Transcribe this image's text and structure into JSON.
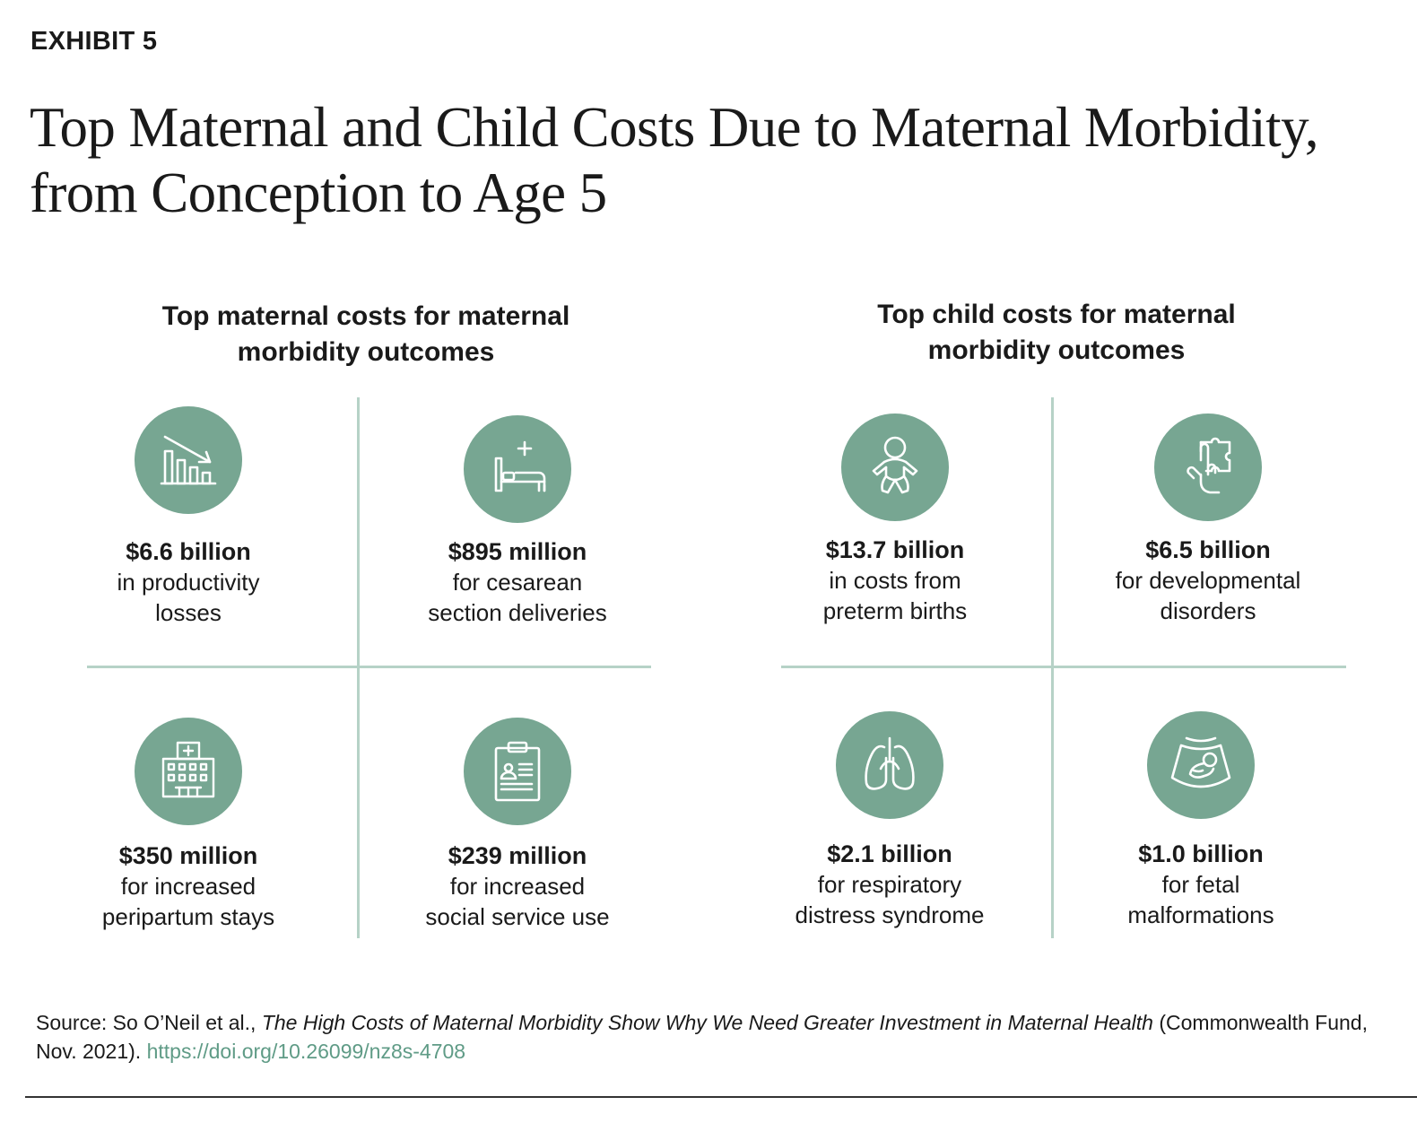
{
  "exhibit_label": "EXHIBIT 5",
  "title_line1": "Top Maternal and Child Costs Due to Maternal Morbidity,",
  "title_line2": "from Conception to Age 5",
  "colors": {
    "icon_fill": "#77a692",
    "divider": "#b6d2c7",
    "link": "#5f9b86"
  },
  "maternal": {
    "heading_line1": "Top maternal costs for maternal",
    "heading_line2": "morbidity outcomes",
    "items": [
      {
        "icon": "declining-bar-chart-icon",
        "amount": "$6.6 billion",
        "line1": "in productivity",
        "line2": "losses"
      },
      {
        "icon": "hospital-bed-icon",
        "amount": "$895 million",
        "line1": "for cesarean",
        "line2": "section deliveries"
      },
      {
        "icon": "hospital-building-icon",
        "amount": "$350 million",
        "line1": "for increased",
        "line2": "peripartum stays"
      },
      {
        "icon": "clipboard-record-icon",
        "amount": "$239 million",
        "line1": "for increased",
        "line2": "social service use"
      }
    ]
  },
  "child": {
    "heading_line1": "Top child costs for maternal",
    "heading_line2": "morbidity outcomes",
    "items": [
      {
        "icon": "baby-icon",
        "amount": "$13.7 billion",
        "line1": "in costs from",
        "line2": "preterm births"
      },
      {
        "icon": "puzzle-hand-icon",
        "amount": "$6.5 billion",
        "line1": "for developmental",
        "line2": "disorders"
      },
      {
        "icon": "lungs-icon",
        "amount": "$2.1 billion",
        "line1": "for respiratory",
        "line2": "distress syndrome"
      },
      {
        "icon": "ultrasound-fetus-icon",
        "amount": "$1.0 billion",
        "line1": "for fetal",
        "line2": "malformations"
      }
    ]
  },
  "source": {
    "prefix": "Source: So O’Neil et al., ",
    "publication": "The High Costs of Maternal Morbidity Show Why We Need Greater Investment in Maternal Health",
    "suffix": " (Commonwealth Fund, Nov. 2021). ",
    "doi": "https://doi.org/10.26099/nz8s-4708"
  }
}
